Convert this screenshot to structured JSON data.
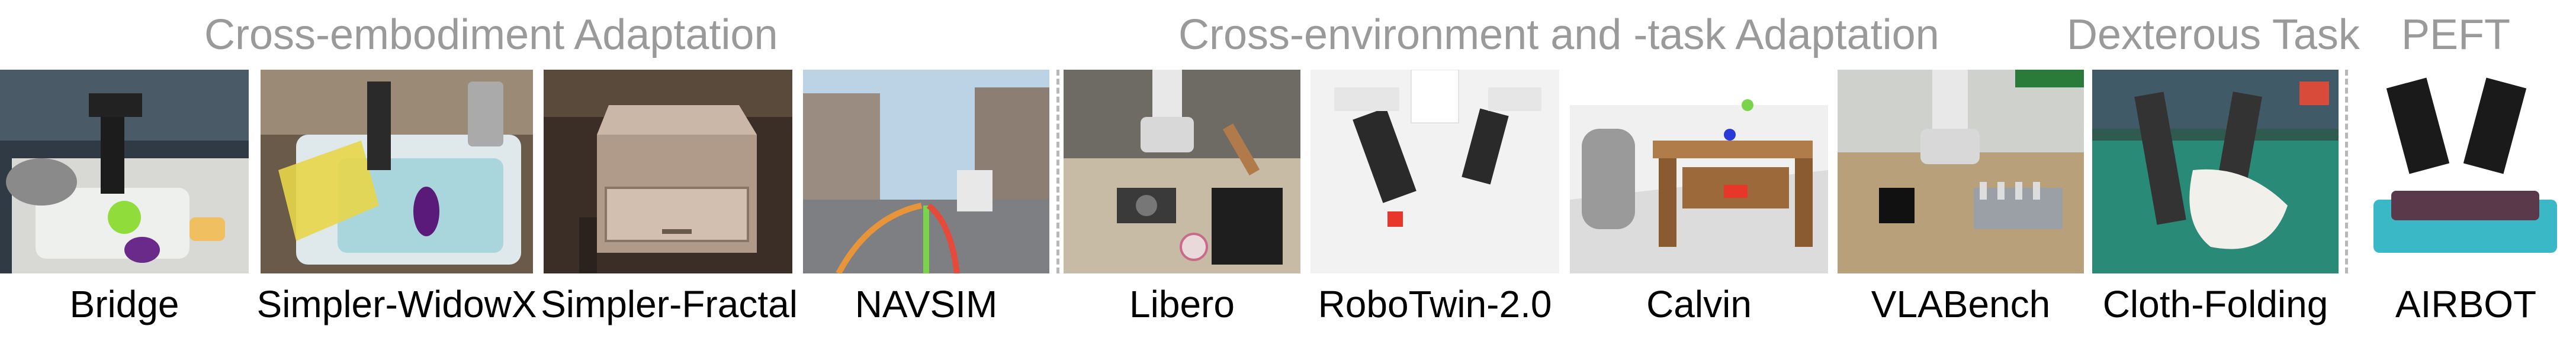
{
  "groups": [
    {
      "title": "Cross-embodiment Adaptation"
    },
    {
      "title": "Cross-environment and -task Adaptation"
    },
    {
      "title": "Dexterous Task"
    },
    {
      "title": "PEFT"
    }
  ],
  "benchmarks": [
    {
      "label": "Bridge"
    },
    {
      "label": "Simpler-WidowX"
    },
    {
      "label": "Simpler-Fractal"
    },
    {
      "label": "NAVSIM"
    },
    {
      "label": "Libero"
    },
    {
      "label": "RoboTwin-2.0"
    },
    {
      "label": "Calvin"
    },
    {
      "label": "VLABench"
    },
    {
      "label": "Cloth-Folding"
    },
    {
      "label": "AIRBOT"
    }
  ]
}
